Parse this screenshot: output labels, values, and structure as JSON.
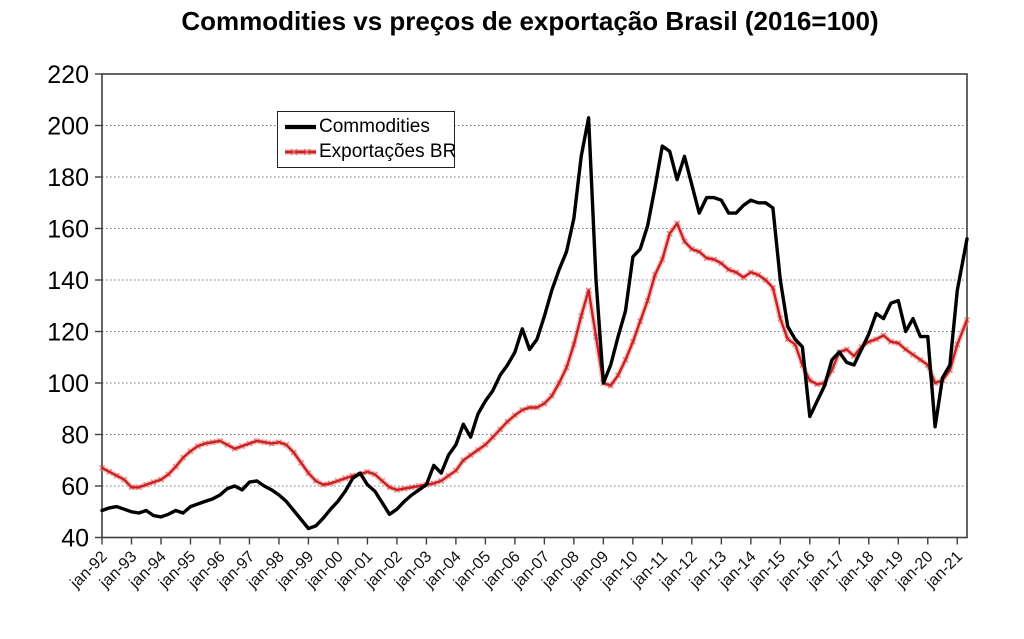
{
  "title": "Commodities vs preços de exportação Brasil (2016=100)",
  "legend": {
    "items": [
      {
        "label": "Commodities",
        "color": "#000000"
      },
      {
        "label": "Exportações BR",
        "color": "#cc2020"
      }
    ]
  },
  "chart_data": {
    "type": "line",
    "title": "Commodities vs preços de exportação Brasil (2016=100)",
    "xlabel": "",
    "ylabel": "",
    "xlim": [
      1992,
      2021.33
    ],
    "ylim": [
      40,
      220
    ],
    "grid": "horizontal-dotted",
    "legend_position": "top-left-inside",
    "y_ticks": [
      40,
      60,
      80,
      100,
      120,
      140,
      160,
      180,
      200,
      220
    ],
    "y_gridlines": [
      60,
      80,
      100,
      120,
      140,
      160,
      180,
      200
    ],
    "x_ticks": [
      {
        "x": 1992,
        "label": "jan-92"
      },
      {
        "x": 1993,
        "label": "jan-93"
      },
      {
        "x": 1994,
        "label": "jan-94"
      },
      {
        "x": 1995,
        "label": "jan-95"
      },
      {
        "x": 1996,
        "label": "jan-96"
      },
      {
        "x": 1997,
        "label": "jan-97"
      },
      {
        "x": 1998,
        "label": "jan-98"
      },
      {
        "x": 1999,
        "label": "jan-99"
      },
      {
        "x": 2000,
        "label": "jan-00"
      },
      {
        "x": 2001,
        "label": "jan-01"
      },
      {
        "x": 2002,
        "label": "jan-02"
      },
      {
        "x": 2003,
        "label": "jan-03"
      },
      {
        "x": 2004,
        "label": "jan-04"
      },
      {
        "x": 2005,
        "label": "jan-05"
      },
      {
        "x": 2006,
        "label": "jan-06"
      },
      {
        "x": 2007,
        "label": "jan-07"
      },
      {
        "x": 2008,
        "label": "jan-08"
      },
      {
        "x": 2009,
        "label": "jan-09"
      },
      {
        "x": 2010,
        "label": "jan-10"
      },
      {
        "x": 2011,
        "label": "jan-11"
      },
      {
        "x": 2012,
        "label": "jan-12"
      },
      {
        "x": 2013,
        "label": "jan-13"
      },
      {
        "x": 2014,
        "label": "jan-14"
      },
      {
        "x": 2015,
        "label": "jan-15"
      },
      {
        "x": 2016,
        "label": "jan-16"
      },
      {
        "x": 2017,
        "label": "jan-17"
      },
      {
        "x": 2018,
        "label": "jan-18"
      },
      {
        "x": 2019,
        "label": "jan-19"
      },
      {
        "x": 2020,
        "label": "jan-20"
      },
      {
        "x": 2021,
        "label": "jan-21"
      }
    ],
    "x": [
      1992,
      1992.25,
      1992.5,
      1992.75,
      1993,
      1993.25,
      1993.5,
      1993.75,
      1994,
      1994.25,
      1994.5,
      1994.75,
      1995,
      1995.25,
      1995.5,
      1995.75,
      1996,
      1996.25,
      1996.5,
      1996.75,
      1997,
      1997.25,
      1997.5,
      1997.75,
      1998,
      1998.25,
      1998.5,
      1998.75,
      1999,
      1999.25,
      1999.5,
      1999.75,
      2000,
      2000.25,
      2000.5,
      2000.75,
      2001,
      2001.25,
      2001.5,
      2001.75,
      2002,
      2002.25,
      2002.5,
      2002.75,
      2003,
      2003.25,
      2003.5,
      2003.75,
      2004,
      2004.25,
      2004.5,
      2004.75,
      2005,
      2005.25,
      2005.5,
      2005.75,
      2006,
      2006.25,
      2006.5,
      2006.75,
      2007,
      2007.25,
      2007.5,
      2007.75,
      2008,
      2008.25,
      2008.5,
      2008.75,
      2009,
      2009.25,
      2009.5,
      2009.75,
      2010,
      2010.25,
      2010.5,
      2010.75,
      2011,
      2011.25,
      2011.5,
      2011.75,
      2012,
      2012.25,
      2012.5,
      2012.75,
      2013,
      2013.25,
      2013.5,
      2013.75,
      2014,
      2014.25,
      2014.5,
      2014.75,
      2015,
      2015.25,
      2015.5,
      2015.75,
      2016,
      2016.25,
      2016.5,
      2016.75,
      2017,
      2017.25,
      2017.5,
      2017.75,
      2018,
      2018.25,
      2018.5,
      2018.75,
      2019,
      2019.25,
      2019.5,
      2019.75,
      2020,
      2020.25,
      2020.5,
      2020.75,
      2021,
      2021.33
    ],
    "series": [
      {
        "name": "Exportações BR",
        "color": "#cc2020",
        "halo_color": "#e79a9a",
        "marker": "x",
        "values": [
          67,
          65.5,
          64,
          62.5,
          59.5,
          59.5,
          60.5,
          61.5,
          62.5,
          64.5,
          67.5,
          71,
          73.5,
          75.5,
          76.5,
          77,
          77.5,
          76,
          74.5,
          75.5,
          76.5,
          77.5,
          77,
          76.5,
          77,
          76,
          73,
          69,
          65,
          62,
          60.5,
          61,
          62,
          63,
          64,
          64.5,
          65.5,
          64.5,
          62,
          59.5,
          58.5,
          59,
          59.5,
          60,
          60.5,
          61,
          62,
          64,
          66,
          70,
          72,
          74,
          76,
          79,
          82,
          85,
          87.5,
          89.5,
          90.5,
          90.5,
          92,
          95,
          100,
          106,
          115,
          126,
          136,
          118,
          100,
          99,
          103,
          109,
          116,
          124,
          132,
          142,
          148,
          158,
          162,
          155,
          152,
          151,
          148.5,
          148,
          146.5,
          144,
          143,
          141,
          143,
          142,
          140,
          137,
          125,
          117,
          115,
          107,
          101,
          99.5,
          100,
          105,
          112,
          113,
          110.5,
          114,
          116,
          117,
          118.5,
          116,
          115.5,
          113,
          111,
          109,
          107,
          100,
          101,
          105,
          115,
          124.5
        ]
      },
      {
        "name": "Commodities",
        "color": "#000000",
        "marker": "none",
        "values": [
          50.5,
          51.5,
          52,
          51,
          50,
          49.5,
          50.5,
          48.5,
          48,
          49,
          50.5,
          49.5,
          52,
          53,
          54,
          55,
          56.5,
          59,
          60,
          58.5,
          61.5,
          62,
          60,
          58.5,
          56.5,
          54,
          50.5,
          47,
          43.5,
          44.5,
          47.5,
          51,
          54,
          58,
          63,
          65,
          60.5,
          58,
          53.5,
          49,
          51,
          54,
          56.5,
          58.5,
          60.5,
          68,
          65,
          72,
          76,
          84,
          79,
          88,
          93,
          97,
          103,
          107,
          112,
          121,
          113,
          117,
          126,
          136,
          144,
          151,
          164,
          188,
          203,
          140,
          100,
          107,
          118,
          128,
          149,
          152,
          161,
          176,
          192,
          190,
          179,
          188,
          177,
          166,
          172,
          172,
          171,
          166,
          166,
          169,
          171,
          170,
          170,
          168,
          140,
          122,
          117,
          114,
          87,
          93,
          99,
          109,
          112,
          108,
          107,
          113,
          119,
          127,
          125,
          131,
          132,
          120,
          125,
          118,
          118,
          83,
          102,
          107,
          136,
          156
        ]
      }
    ]
  }
}
